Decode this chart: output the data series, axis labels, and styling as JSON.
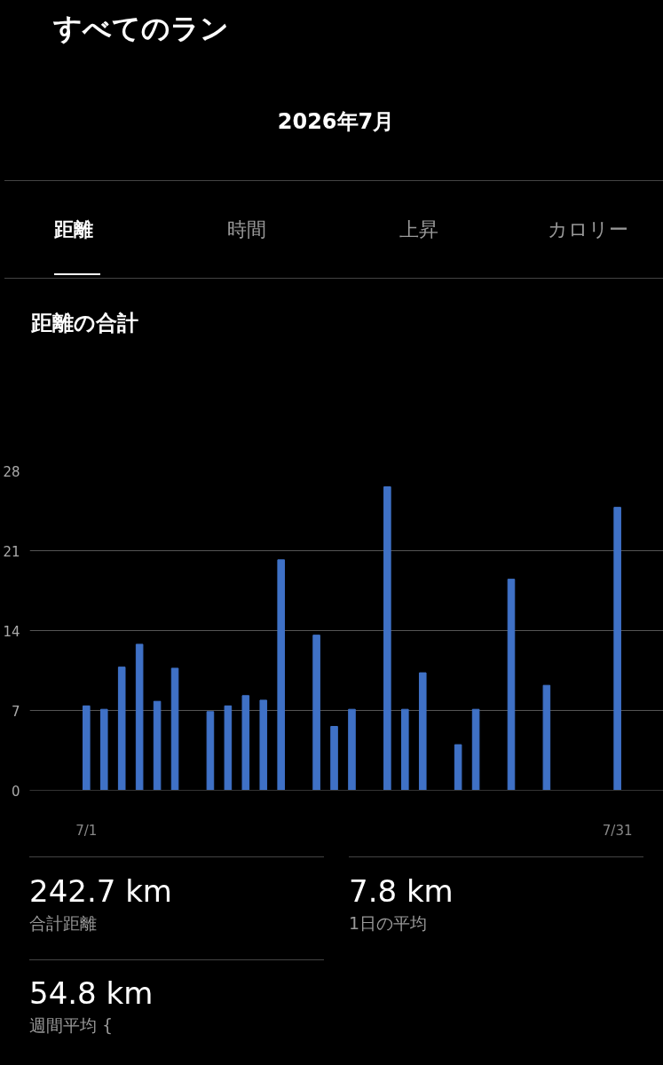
{
  "chart_data": {
    "type": "bar",
    "title": "距離の合計",
    "subtitle": "2026年7月",
    "categories": [
      "7/1",
      null,
      null,
      null,
      null,
      null,
      null,
      null,
      null,
      null,
      null,
      null,
      null,
      null,
      null,
      null,
      null,
      null,
      null,
      null,
      null,
      null,
      null,
      null,
      null,
      null,
      null,
      null,
      null,
      null,
      "7/31"
    ],
    "values": [
      7.4,
      7.1,
      10.8,
      12.8,
      7.8,
      10.7,
      null,
      6.9,
      7.4,
      8.3,
      7.9,
      20.2,
      null,
      13.6,
      5.6,
      7.1,
      null,
      26.6,
      7.1,
      10.3,
      null,
      4.0,
      7.1,
      null,
      18.5,
      null,
      9.2,
      null,
      null,
      null,
      24.8
    ],
    "color": "#3f71c6",
    "ylim": [
      0,
      28
    ],
    "yticks": [
      0,
      7,
      14,
      21,
      28
    ],
    "grid": "y",
    "annotations": [
      "すべてのラン",
      "距離",
      "時間",
      "上昇",
      "カロリー",
      "242.7 km",
      "合計距離",
      "7.8 km",
      "1日の平均",
      "54.8 km",
      "週間平均 {"
    ]
  }
}
